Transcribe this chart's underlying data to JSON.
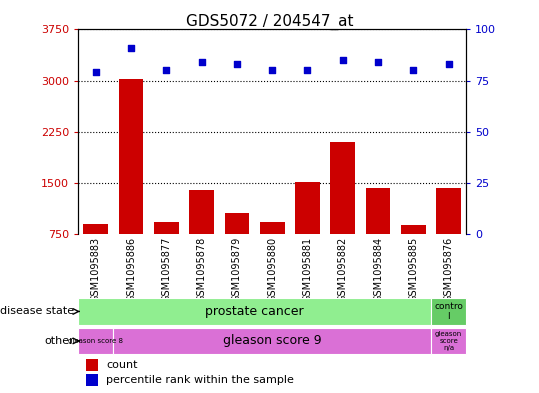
{
  "title": "GDS5072 / 204547_at",
  "samples": [
    "GSM1095883",
    "GSM1095886",
    "GSM1095877",
    "GSM1095878",
    "GSM1095879",
    "GSM1095880",
    "GSM1095881",
    "GSM1095882",
    "GSM1095884",
    "GSM1095885",
    "GSM1095876"
  ],
  "counts": [
    900,
    3020,
    930,
    1390,
    1060,
    920,
    1510,
    2100,
    1430,
    880,
    1430
  ],
  "percentiles": [
    79,
    91,
    80,
    84,
    83,
    80,
    80,
    85,
    84,
    80,
    83
  ],
  "ylim_left": [
    750,
    3750
  ],
  "ylim_right": [
    0,
    100
  ],
  "yticks_left": [
    750,
    1500,
    2250,
    3000,
    3750
  ],
  "yticks_right": [
    0,
    25,
    50,
    75,
    100
  ],
  "bar_color": "#cc0000",
  "dot_color": "#0000cc",
  "background_color": "#ffffff",
  "plot_bg": "#ffffff",
  "tick_area_bg": "#d3d3d3",
  "disease_state_colors": [
    "#90ee90",
    "#66cc66"
  ],
  "other_colors_left": "#da70d6",
  "other_colors_right": "#da70d6",
  "legend_items": [
    "count",
    "percentile rank within the sample"
  ],
  "legend_colors": [
    "#cc0000",
    "#0000cc"
  ]
}
